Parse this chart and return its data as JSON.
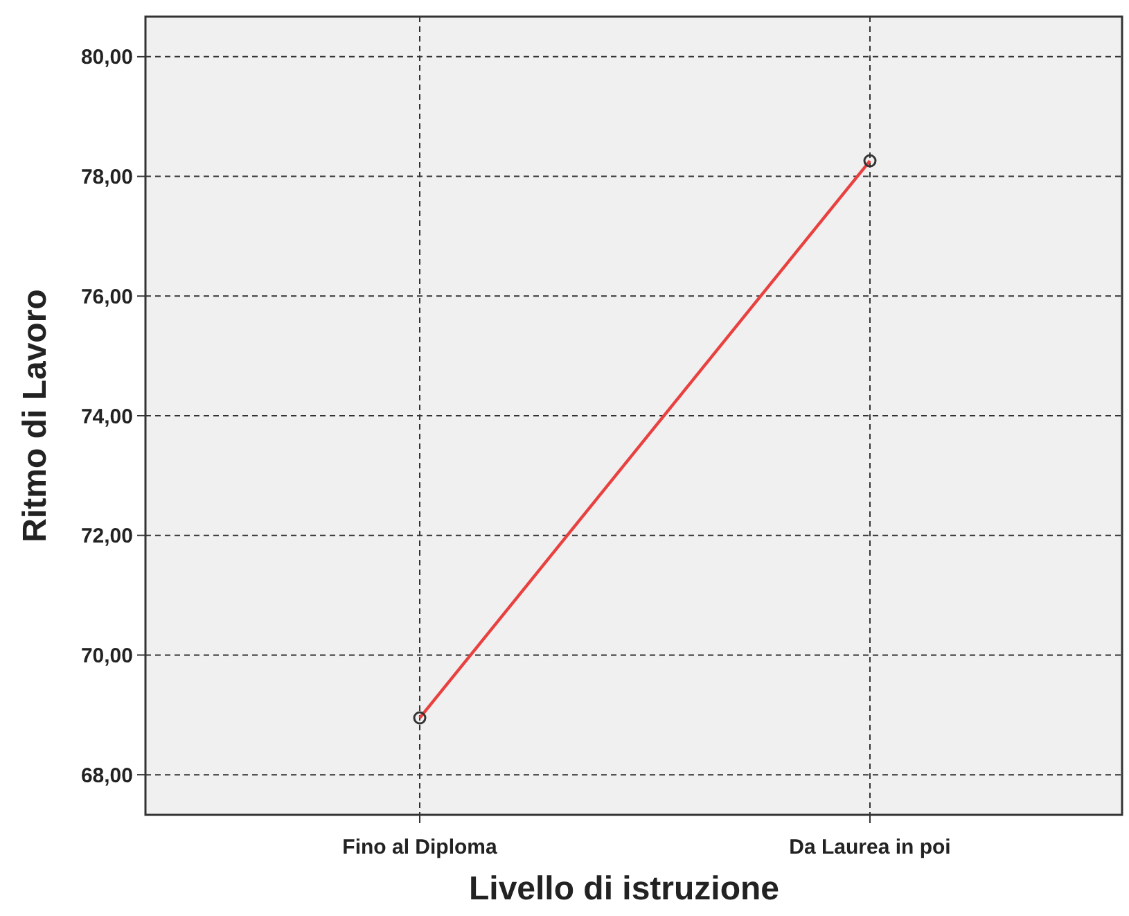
{
  "chart_data": {
    "type": "line",
    "xlabel": "Livello di istruzione",
    "ylabel": "Ritmo di Lavoro",
    "categories": [
      "Fino al Diploma",
      "Da Laurea in poi"
    ],
    "series": [
      {
        "color": "#e8413f",
        "values": [
          68.95,
          78.26
        ]
      }
    ],
    "ylim": [
      67.33,
      80.67
    ],
    "yticks": [
      {
        "value": 68,
        "label": "68,00"
      },
      {
        "value": 70,
        "label": "70,00"
      },
      {
        "value": 72,
        "label": "72,00"
      },
      {
        "value": 74,
        "label": "74,00"
      },
      {
        "value": 76,
        "label": "76,00"
      },
      {
        "value": 78,
        "label": "78,00"
      },
      {
        "value": 80,
        "label": "80,00"
      }
    ],
    "grid": true,
    "marker": "circle",
    "line_style": "solid"
  }
}
